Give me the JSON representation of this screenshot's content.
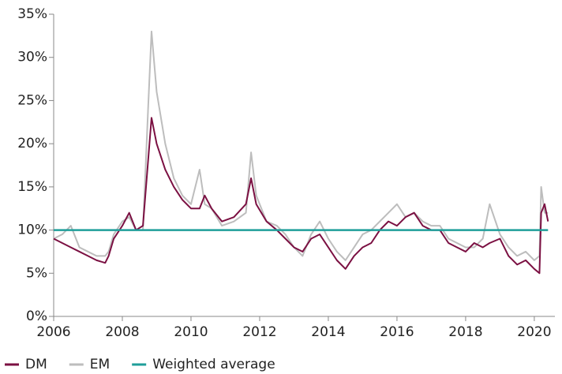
{
  "chart_data": {
    "type": "line",
    "x": [
      2006.0,
      2006.25,
      2006.5,
      2006.75,
      2007.0,
      2007.25,
      2007.5,
      2007.6,
      2007.75,
      2008.0,
      2008.2,
      2008.4,
      2008.6,
      2008.75,
      2008.85,
      2009.0,
      2009.25,
      2009.5,
      2009.75,
      2010.0,
      2010.25,
      2010.4,
      2010.6,
      2010.9,
      2011.25,
      2011.6,
      2011.75,
      2011.9,
      2012.2,
      2012.5,
      2012.75,
      2013.0,
      2013.25,
      2013.5,
      2013.75,
      2014.0,
      2014.25,
      2014.5,
      2014.75,
      2015.0,
      2015.25,
      2015.5,
      2015.75,
      2016.0,
      2016.25,
      2016.5,
      2016.75,
      2017.0,
      2017.25,
      2017.5,
      2017.75,
      2018.0,
      2018.25,
      2018.5,
      2018.7,
      2019.0,
      2019.25,
      2019.5,
      2019.75,
      2020.0,
      2020.15,
      2020.2,
      2020.3,
      2020.4
    ],
    "series": [
      {
        "name": "DM",
        "color": "#7b1042",
        "values": [
          9,
          8.5,
          8,
          7.5,
          7,
          6.5,
          6.2,
          7,
          9,
          10.5,
          12,
          10,
          10.5,
          18,
          23,
          20,
          17,
          15,
          13.5,
          12.5,
          12.5,
          14,
          12.5,
          11,
          11.5,
          13,
          16,
          13,
          11,
          10,
          9,
          8,
          7.5,
          9,
          9.5,
          8,
          6.5,
          5.5,
          7,
          8,
          8.5,
          10,
          11,
          10.5,
          11.5,
          12,
          10.5,
          10,
          10,
          8.5,
          8,
          7.5,
          8.5,
          8,
          8.5,
          9,
          7,
          6,
          6.5,
          5.5,
          5,
          12,
          13,
          11
        ]
      },
      {
        "name": "EM",
        "color": "#bdbdbd",
        "values": [
          9,
          9.5,
          10.5,
          8,
          7.5,
          7,
          7,
          7.5,
          9.5,
          11,
          11.5,
          10,
          10,
          24,
          33,
          26,
          20,
          16,
          14,
          13,
          17,
          13,
          12.5,
          10.5,
          11,
          12,
          19,
          14,
          11,
          10.5,
          9.5,
          8,
          7,
          9.5,
          11,
          9,
          7.5,
          6.5,
          8,
          9.5,
          10,
          11,
          12,
          13,
          11.5,
          12,
          11,
          10.5,
          10.5,
          9,
          8.5,
          8,
          8,
          9,
          13,
          9.5,
          8,
          7,
          7.5,
          6.5,
          7,
          15,
          12,
          12
        ]
      },
      {
        "name": "Weighted average",
        "color": "#1f9e9a",
        "values": [
          10,
          10,
          10,
          10,
          10,
          10,
          10,
          10,
          10,
          10,
          10,
          10,
          10,
          10,
          10,
          10,
          10,
          10,
          10,
          10,
          10,
          10,
          10,
          10,
          10,
          10,
          10,
          10,
          10,
          10,
          10,
          10,
          10,
          10,
          10,
          10,
          10,
          10,
          10,
          10,
          10,
          10,
          10,
          10,
          10,
          10,
          10,
          10,
          10,
          10,
          10,
          10,
          10,
          10,
          10,
          10,
          10,
          10,
          10,
          10,
          10,
          10,
          10,
          10
        ]
      }
    ],
    "xlim": [
      2006,
      2020.6
    ],
    "xticks": [
      2006,
      2008,
      2010,
      2012,
      2014,
      2016,
      2018,
      2020
    ],
    "ylim": [
      0,
      35
    ],
    "yticks": [
      {
        "value": 0,
        "label": "0%"
      },
      {
        "value": 5,
        "label": "5%"
      },
      {
        "value": 10,
        "label": "10%"
      },
      {
        "value": 15,
        "label": "15%"
      },
      {
        "value": 20,
        "label": "20%"
      },
      {
        "value": 25,
        "label": "25%"
      },
      {
        "value": 30,
        "label": "30%"
      },
      {
        "value": 35,
        "label": "35%"
      }
    ],
    "legend": "bottom-left",
    "grid": false
  }
}
